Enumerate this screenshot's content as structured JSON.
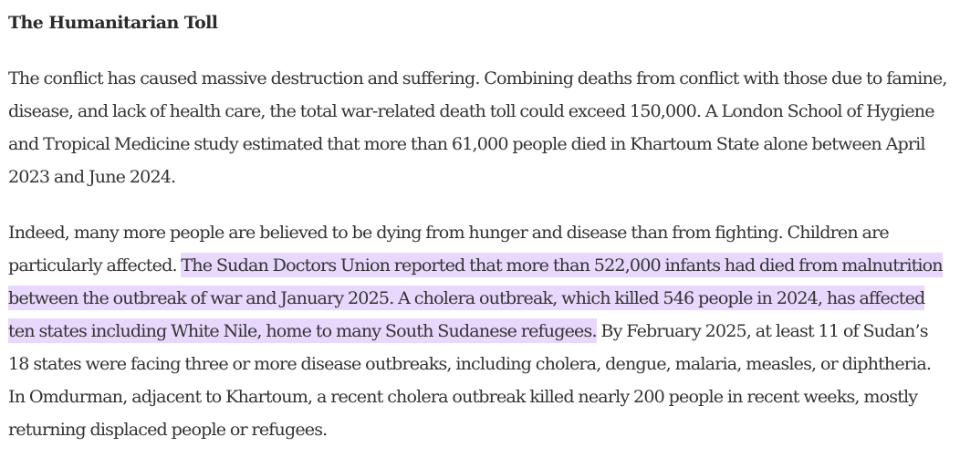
{
  "section": {
    "heading": "The Humanitarian Toll"
  },
  "paragraphs": [
    {
      "text": "The conflict has caused massive destruction and suffering. Combining deaths from conflict with those due to famine, disease, and lack of health care, the total war-related death toll could exceed 150,000. A London School of Hygiene and Tropical Medicine study estimated that more than 61,000 people died in Khartoum State alone between April 2023 and June 2024."
    },
    {
      "before": "Indeed, many more people are believed to be dying from hunger and disease than from fighting. Children are particularly affected. ",
      "highlight": "The Sudan Doctors Union reported that more than 522,000 infants had died from malnutrition between the outbreak of war and January 2025. A cholera outbreak, which killed 546 people in 2024, has affected ten states including White Nile, home to many South Sudanese refugees.",
      "after": " By February 2025, at least 11 of Sudan’s 18 states were facing three or more disease outbreaks, including cholera, dengue, malaria, measles, or diphtheria. In Omdurman, adjacent to Khartoum, a recent cholera outbreak killed nearly 200 people in recent weeks, mostly returning displaced people or refugees."
    }
  ],
  "colors": {
    "highlight_background": "#e9d8fd",
    "text": "#333333"
  }
}
